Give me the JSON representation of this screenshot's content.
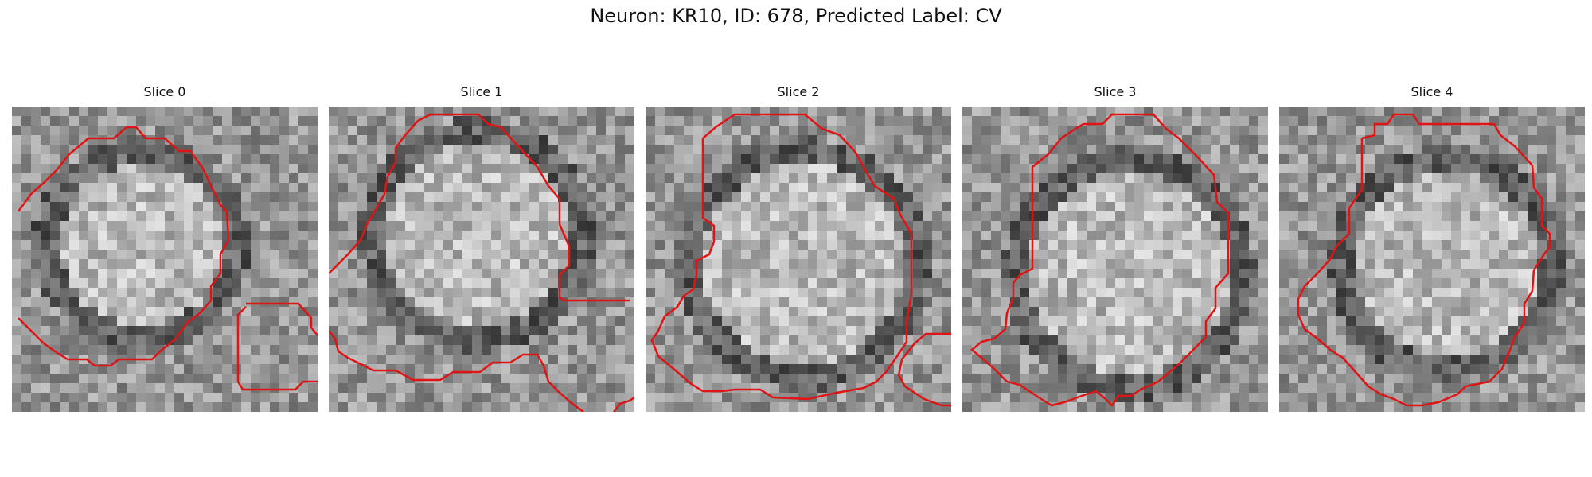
{
  "figure": {
    "title": "Neuron: KR10, ID: 678, Predicted Label: CV"
  },
  "contour_color": "#e01414",
  "panels": [
    {
      "title": "Slice 0",
      "image": "grayscale-em-slice",
      "seed": 11
    },
    {
      "title": "Slice 1",
      "image": "grayscale-em-slice",
      "seed": 23
    },
    {
      "title": "Slice 2",
      "image": "grayscale-em-slice",
      "seed": 37
    },
    {
      "title": "Slice 3",
      "image": "grayscale-em-slice",
      "seed": 41
    },
    {
      "title": "Slice 4",
      "image": "grayscale-em-slice",
      "seed": 53
    }
  ]
}
